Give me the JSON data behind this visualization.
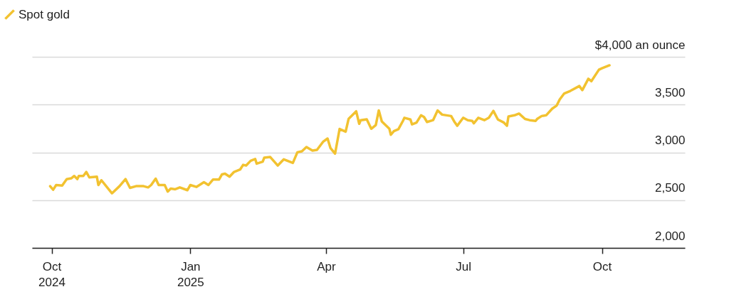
{
  "chart_data": {
    "type": "line",
    "legend": "top left",
    "grid": "y",
    "line_style": "solid",
    "marker": "none",
    "xlim": [
      "2024-09-18",
      "2025-11-25"
    ],
    "xticks": [
      {
        "value": "2024-10-01",
        "label": "Oct 2024"
      },
      {
        "value": "2025-01-01",
        "label": "Jan 2025"
      },
      {
        "value": "2025-04-01",
        "label": "Apr"
      },
      {
        "value": "2025-07-01",
        "label": "Jul"
      },
      {
        "value": "2025-10-01",
        "label": "Oct"
      }
    ],
    "ylim": [
      2000,
      4000
    ],
    "yticks": [
      {
        "value": 2000,
        "label": "2,000"
      },
      {
        "value": 2500,
        "label": "2,500"
      },
      {
        "value": 3000,
        "label": "3,000"
      },
      {
        "value": 3500,
        "label": "3,500"
      },
      {
        "value": 4000,
        "label": "$4,000 an ounce"
      }
    ],
    "x": [
      "2024-09-30",
      "2024-10-02",
      "2024-10-04",
      "2024-10-08",
      "2024-10-11",
      "2024-10-14",
      "2024-10-16",
      "2024-10-18",
      "2024-10-19",
      "2024-10-22",
      "2024-10-24",
      "2024-10-26",
      "2024-10-31",
      "2024-11-01",
      "2024-11-03",
      "2024-11-10",
      "2024-11-15",
      "2024-11-19",
      "2024-11-22",
      "2024-11-26",
      "2024-12-01",
      "2024-12-04",
      "2024-12-06",
      "2024-12-09",
      "2024-12-11",
      "2024-12-15",
      "2024-12-17",
      "2024-12-19",
      "2024-12-22",
      "2024-12-25",
      "2024-12-30",
      "2025-01-01",
      "2025-01-05",
      "2025-01-10",
      "2025-01-13",
      "2025-01-16",
      "2025-01-20",
      "2025-01-22",
      "2025-01-24",
      "2025-01-27",
      "2025-01-30",
      "2025-02-03",
      "2025-02-05",
      "2025-02-07",
      "2025-02-10",
      "2025-02-13",
      "2025-02-14",
      "2025-02-18",
      "2025-02-19",
      "2025-02-23",
      "2025-02-28",
      "2025-03-04",
      "2025-03-10",
      "2025-03-13",
      "2025-03-16",
      "2025-03-19",
      "2025-03-23",
      "2025-03-26",
      "2025-03-30",
      "2025-04-02",
      "2025-04-04",
      "2025-04-07",
      "2025-04-10",
      "2025-04-14",
      "2025-04-16",
      "2025-04-21",
      "2025-04-23",
      "2025-04-24",
      "2025-04-28",
      "2025-05-01",
      "2025-05-04",
      "2025-05-06",
      "2025-05-08",
      "2025-05-13",
      "2025-05-14",
      "2025-05-16",
      "2025-05-19",
      "2025-05-22",
      "2025-05-23",
      "2025-05-27",
      "2025-05-28",
      "2025-05-31",
      "2025-06-03",
      "2025-06-05",
      "2025-06-07",
      "2025-06-11",
      "2025-06-14",
      "2025-06-17",
      "2025-06-23",
      "2025-06-25",
      "2025-06-27",
      "2025-07-01",
      "2025-07-04",
      "2025-07-07",
      "2025-07-08",
      "2025-07-11",
      "2025-07-15",
      "2025-07-18",
      "2025-07-21",
      "2025-07-24",
      "2025-07-28",
      "2025-07-30",
      "2025-07-31",
      "2025-08-04",
      "2025-08-07",
      "2025-08-11",
      "2025-08-14",
      "2025-08-18",
      "2025-08-19",
      "2025-08-22",
      "2025-08-25",
      "2025-08-29",
      "2025-09-01",
      "2025-09-03",
      "2025-09-06",
      "2025-09-10",
      "2025-09-16",
      "2025-09-18",
      "2025-09-22",
      "2025-09-24",
      "2025-09-29",
      "2025-10-01",
      "2025-10-06"
    ],
    "series": [
      {
        "name": "Spot gold",
        "color": "#f2c230",
        "values": [
          2646,
          2609,
          2658,
          2653,
          2720,
          2728,
          2753,
          2720,
          2753,
          2753,
          2795,
          2738,
          2745,
          2658,
          2708,
          2571,
          2646,
          2720,
          2628,
          2646,
          2646,
          2633,
          2658,
          2725,
          2658,
          2658,
          2589,
          2621,
          2614,
          2633,
          2604,
          2658,
          2638,
          2688,
          2658,
          2715,
          2715,
          2770,
          2777,
          2745,
          2795,
          2820,
          2869,
          2862,
          2912,
          2931,
          2882,
          2902,
          2944,
          2951,
          2862,
          2927,
          2889,
          3001,
          3011,
          3056,
          3018,
          3026,
          3110,
          3145,
          3043,
          2987,
          3245,
          3217,
          3352,
          3430,
          3299,
          3336,
          3345,
          3247,
          3286,
          3439,
          3324,
          3247,
          3184,
          3222,
          3242,
          3329,
          3362,
          3344,
          3293,
          3311,
          3388,
          3370,
          3318,
          3337,
          3439,
          3395,
          3380,
          3324,
          3278,
          3362,
          3337,
          3329,
          3304,
          3362,
          3337,
          3362,
          3434,
          3344,
          3311,
          3278,
          3375,
          3388,
          3406,
          3349,
          3337,
          3329,
          3349,
          3380,
          3388,
          3457,
          3490,
          3554,
          3617,
          3643,
          3694,
          3651,
          3770,
          3745,
          3865,
          3880,
          3911
        ]
      }
    ]
  }
}
